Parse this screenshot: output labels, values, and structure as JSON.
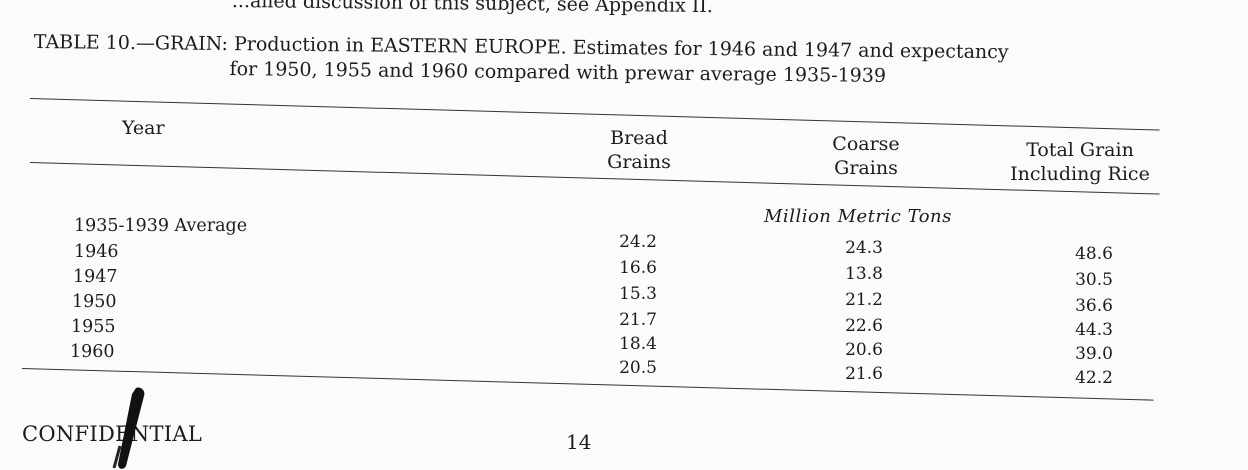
{
  "header_fragment": "...ailed discussion of this subject, see Appendix II.",
  "caption": {
    "line1": "TABLE 10.—GRAIN: Production in EASTERN EUROPE.  Estimates for 1946 and 1947 and expectancy",
    "line2": "for 1950, 1955 and 1960 compared with prewar average 1935-1939"
  },
  "table": {
    "columns": {
      "year": "Year",
      "bread_line1": "Bread",
      "bread_line2": "Grains",
      "coarse_line1": "Coarse",
      "coarse_line2": "Grains",
      "total_line1": "Total Grain",
      "total_line2": "Including Rice"
    },
    "units": "Million Metric Tons",
    "years": [
      "1935-1939 Average",
      "1946",
      "1947",
      "1950",
      "1955",
      "1960"
    ],
    "bread": [
      "24.2",
      "16.6",
      "15.3",
      "21.7",
      "18.4",
      "20.5"
    ],
    "coarse": [
      "24.3",
      "13.8",
      "21.2",
      "22.6",
      "20.6",
      "21.6"
    ],
    "total": [
      "48.6",
      "30.5",
      "36.6",
      "44.3",
      "39.0",
      "42.2"
    ]
  },
  "footer": {
    "classification": "CONFIDENTIAL",
    "page_number": "14"
  }
}
